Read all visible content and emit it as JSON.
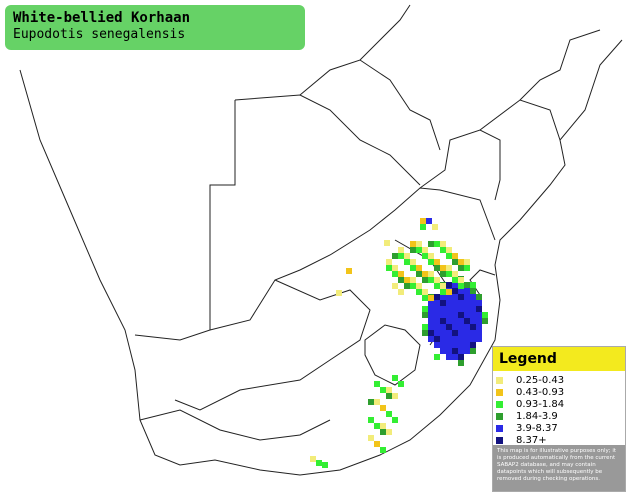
{
  "header": {
    "title": "White-bellied Korhaan",
    "subtitle": "Eupodotis senegalensis"
  },
  "legend": {
    "title": "Legend",
    "items": [
      {
        "label": "0.25-0.43",
        "color": "#f2ec7a"
      },
      {
        "label": "0.43-0.93",
        "color": "#f2c41a"
      },
      {
        "label": "0.93-1.84",
        "color": "#33ee33"
      },
      {
        "label": "1.84-3.9",
        "color": "#2e9e2e"
      },
      {
        "label": "3.9-8.37",
        "color": "#2a2ae6"
      },
      {
        "label": "8.37+",
        "color": "#121280"
      }
    ],
    "note": "This map is for illustrative purposes only; it is produced automatically from the current SABAP2 database, and may contain datapoints which will subsequently be removed during checking operations."
  }
}
